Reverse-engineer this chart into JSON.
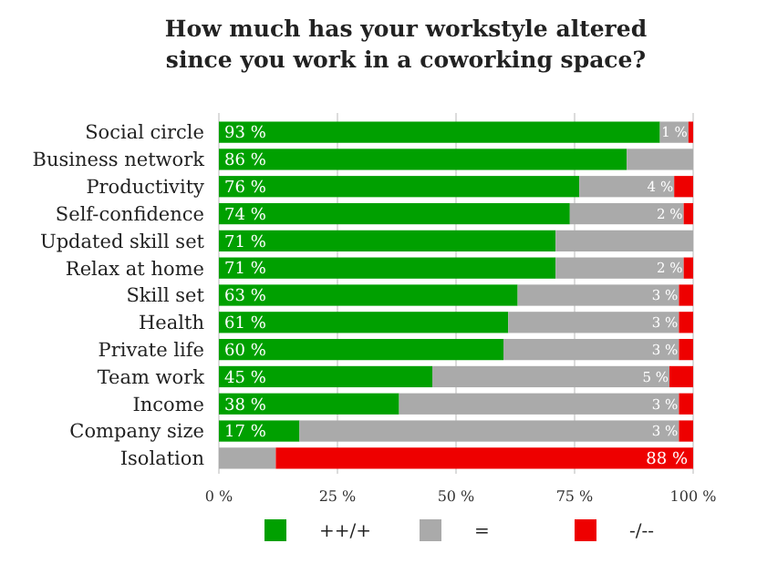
{
  "chart_data": {
    "type": "bar",
    "orientation": "horizontal",
    "stacked": true,
    "title": "How much has your workstyle altered since you work in a coworking space?",
    "categories": [
      "Social circle",
      "Business network",
      "Productivity",
      "Self-confidence",
      "Updated skill set",
      "Relax at home",
      "Skill set",
      "Health",
      "Private life",
      "Team work",
      "Income",
      "Company size",
      "Isolation"
    ],
    "series": [
      {
        "name": "++/+",
        "color": "#00a000",
        "values": [
          93,
          86,
          76,
          74,
          71,
          71,
          63,
          61,
          60,
          45,
          38,
          17,
          0
        ],
        "value_labels": [
          "93 %",
          "86 %",
          "76 %",
          "74 %",
          "71 %",
          "71 %",
          "63 %",
          "61 %",
          "60 %",
          "45 %",
          "38 %",
          "17 %",
          null
        ]
      },
      {
        "name": "=",
        "color": "#aaaaaa",
        "values": [
          6,
          14,
          20,
          24,
          29,
          27,
          34,
          36,
          37,
          50,
          59,
          80,
          12
        ]
      },
      {
        "name": "-/--",
        "color": "#ee0000",
        "values": [
          1,
          0,
          4,
          2,
          0,
          2,
          3,
          3,
          3,
          5,
          3,
          3,
          88
        ],
        "value_labels": [
          "1 %",
          null,
          "4 %",
          "2 %",
          null,
          "2 %",
          "3 %",
          "3 %",
          "3 %",
          "5 %",
          "3 %",
          "3 %",
          "88 %"
        ]
      }
    ],
    "xlim": [
      0,
      100
    ],
    "xticks": [
      {
        "value": 0,
        "label": "0 %"
      },
      {
        "value": 25,
        "label": "25 %"
      },
      {
        "value": 50,
        "label": "50 %"
      },
      {
        "value": 75,
        "label": "75 %"
      },
      {
        "value": 100,
        "label": "100 %"
      }
    ],
    "grid": "x",
    "legend": "bottom"
  }
}
